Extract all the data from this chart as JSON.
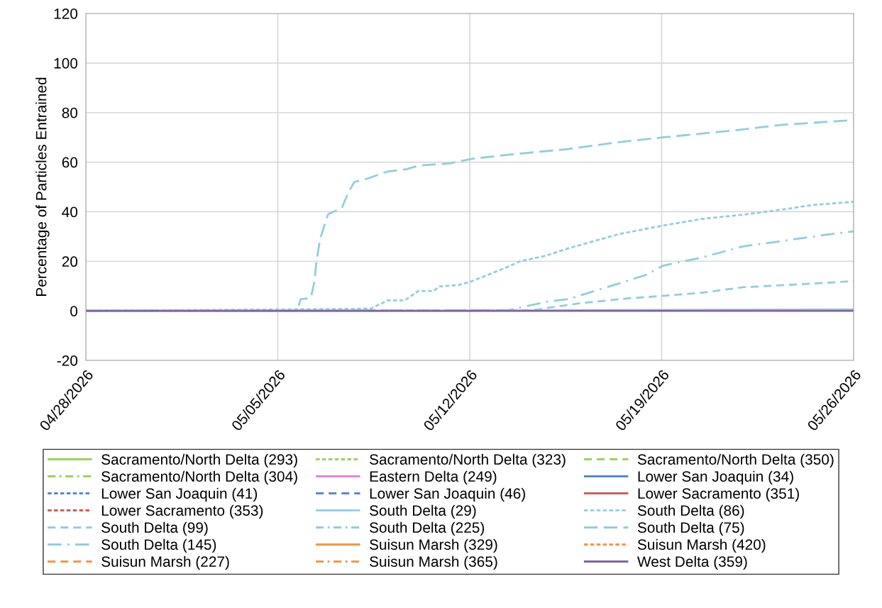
{
  "chart_data": {
    "type": "line",
    "ylabel": "Percentage of Particles Entrained",
    "xlim": [
      "2026-04-28",
      "2026-05-26"
    ],
    "xticks": [
      {
        "value": "2026-04-28",
        "label": "04/28/2026"
      },
      {
        "value": "2026-05-05",
        "label": "05/05/2026"
      },
      {
        "value": "2026-05-12",
        "label": "05/12/2026"
      },
      {
        "value": "2026-05-19",
        "label": "05/19/2026"
      },
      {
        "value": "2026-05-26",
        "label": "05/26/2026"
      }
    ],
    "ylim": [
      -20,
      120
    ],
    "yticks": [
      -20,
      0,
      20,
      40,
      60,
      80,
      100,
      120
    ],
    "grid": true,
    "legend": "bottom",
    "marker": "none",
    "series": [
      {
        "name": "Sacramento/North Delta (293)",
        "color": "#92d050",
        "line_style": "solid"
      },
      {
        "name": "Sacramento/North Delta (323)",
        "color": "#92d050",
        "line_style": "dotted"
      },
      {
        "name": "Sacramento/North Delta (350)",
        "color": "#92d050",
        "line_style": "dashed"
      },
      {
        "name": "Sacramento/North Delta (304)",
        "color": "#92d050",
        "line_style": "dashdot"
      },
      {
        "name": "Eastern Delta (249)",
        "color": "#dc7ee0",
        "line_style": "solid"
      },
      {
        "name": "Lower San Joaquin (34)",
        "color": "#4a7fd0",
        "line_style": "solid"
      },
      {
        "name": "Lower San Joaquin (41)",
        "color": "#4a7fd0",
        "line_style": "dotted"
      },
      {
        "name": "Lower San Joaquin (46)",
        "color": "#4a7fd0",
        "line_style": "dashed"
      },
      {
        "name": "Lower Sacramento (351)",
        "color": "#d0504d",
        "line_style": "solid"
      },
      {
        "name": "Lower Sacramento (353)",
        "color": "#d0504d",
        "line_style": "dotted"
      },
      {
        "name": "South Delta (29)",
        "color": "#93cddd",
        "line_style": "solid",
        "x": [
          "2026-04-28",
          "2026-05-12",
          "2026-05-17",
          "2026-05-26"
        ],
        "values": [
          0,
          0,
          0.3,
          0.6
        ]
      },
      {
        "name": "South Delta (86)",
        "color": "#93cddd",
        "line_style": "dotted",
        "x": [
          "2026-04-28",
          "2026-05-07T19:00",
          "2026-05-08T10:00",
          "2026-05-09T00:00",
          "2026-05-09T15:00",
          "2026-05-10T03:00",
          "2026-05-10T16:00",
          "2026-05-10T22:00",
          "2026-05-11T14:00",
          "2026-05-12T01:00",
          "2026-05-13T08:00",
          "2026-05-13T20:00",
          "2026-05-14T19:00",
          "2026-05-15T14:00",
          "2026-05-17T11:00",
          "2026-05-19T01:00",
          "2026-05-20T11:00",
          "2026-05-21T23:00",
          "2026-05-23T07:00",
          "2026-05-24T12:00",
          "2026-05-26"
        ],
        "values": [
          0,
          0.8,
          1,
          4.2,
          4.2,
          8,
          8,
          9.9,
          10.4,
          11.8,
          17.5,
          20,
          22.3,
          25.2,
          31,
          34.4,
          37.1,
          38.8,
          40.7,
          42.7,
          44
        ]
      },
      {
        "name": "South Delta (99)",
        "color": "#93cddd",
        "line_style": "dashed",
        "x": [
          "2026-04-28",
          "2026-05-14T08:00",
          "2026-05-15T01:00",
          "2026-05-16T01:00",
          "2026-05-17T18:00",
          "2026-05-18T21:00",
          "2026-05-20T11:00",
          "2026-05-21T23:00",
          "2026-05-23T12:00",
          "2026-05-25T07:00",
          "2026-05-26"
        ],
        "values": [
          0,
          0.3,
          1.5,
          3.1,
          5,
          5.9,
          7.3,
          9.5,
          10.4,
          11.5,
          12
        ]
      },
      {
        "name": "South Delta (225)",
        "color": "#93cddd",
        "line_style": "dashdot"
      },
      {
        "name": "South Delta (75)",
        "color": "#93cddd",
        "line_style": "longdash",
        "x": [
          "2026-04-28",
          "2026-05-05T17:00",
          "2026-05-05T20:00",
          "2026-05-06T05:00",
          "2026-05-06T08:00",
          "2026-05-06T10:00",
          "2026-05-06T13:00",
          "2026-05-06T20:00",
          "2026-05-07T08:00",
          "2026-05-07T14:00",
          "2026-05-07T19:00",
          "2026-05-08T06:00",
          "2026-05-09T00:00",
          "2026-05-09T17:00",
          "2026-05-10T03:00",
          "2026-05-11T06:00",
          "2026-05-12T01:00",
          "2026-05-13T08:00",
          "2026-05-15T14:00",
          "2026-05-17T09:00",
          "2026-05-19T01:00",
          "2026-05-21T19:00",
          "2026-05-23T08:00",
          "2026-05-26"
        ],
        "values": [
          0,
          0,
          4.7,
          5.2,
          11.8,
          20.4,
          29,
          39,
          41.5,
          48,
          52,
          53.3,
          56.2,
          57.2,
          58.6,
          59.5,
          61.3,
          62.9,
          65.3,
          68,
          70,
          73,
          75,
          77
        ]
      },
      {
        "name": "South Delta (145)",
        "color": "#93cddd",
        "line_style": "longdashdot",
        "x": [
          "2026-04-28",
          "2026-05-13T10:00",
          "2026-05-14T20:00",
          "2026-05-15T15:00",
          "2026-05-16T18:00",
          "2026-05-17T15:00",
          "2026-05-18T11:00",
          "2026-05-19T01:00",
          "2026-05-20T11:00",
          "2026-05-21T23:00",
          "2026-05-23T07:00",
          "2026-05-24T19:00",
          "2026-05-26"
        ],
        "values": [
          0,
          0.3,
          3.7,
          4.8,
          8.7,
          11.7,
          14.6,
          18.2,
          21.5,
          26,
          28,
          30.4,
          32.1
        ]
      },
      {
        "name": "Suisun Marsh (329)",
        "color": "#f79646",
        "line_style": "solid"
      },
      {
        "name": "Suisun Marsh (420)",
        "color": "#f79646",
        "line_style": "dotted"
      },
      {
        "name": "Suisun Marsh (227)",
        "color": "#f79646",
        "line_style": "dashed"
      },
      {
        "name": "Suisun Marsh (365)",
        "color": "#f79646",
        "line_style": "dashdot"
      },
      {
        "name": "West Delta (359)",
        "color": "#8064a2",
        "line_style": "solid",
        "x": [
          "2026-04-28",
          "2026-05-26"
        ],
        "values": [
          0,
          0
        ]
      }
    ]
  }
}
